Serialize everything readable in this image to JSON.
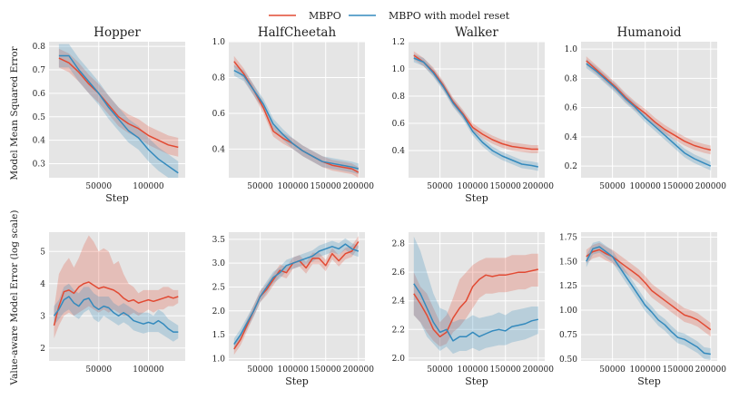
{
  "legend": {
    "items": [
      {
        "label": "MBPO",
        "color": "#E24A33"
      },
      {
        "label": "MBPO with model reset",
        "color": "#348ABD"
      }
    ]
  },
  "colors": {
    "panel_background": "#E5E5E5",
    "grid": "#FFFFFF",
    "mbpo": "#E24A33",
    "reset": "#348ABD"
  },
  "row_labels": [
    "Model Mean Squared Error",
    "Value-aware Model Error (log scale)"
  ],
  "chart_data": [
    {
      "type": "line",
      "title": "Hopper",
      "xlabel": "Step",
      "ylabel": "Model Mean Squared Error",
      "xlim": [
        0,
        137000
      ],
      "ylim": [
        0.24,
        0.82
      ],
      "xticks": [
        50000,
        100000
      ],
      "yticks": [
        0.3,
        0.4,
        0.5,
        0.6,
        0.7,
        0.8
      ],
      "yticklabels": [
        "0.3",
        "0.4",
        "0.5",
        "0.6",
        "0.7",
        "0.8"
      ],
      "grid": true,
      "x": [
        10000,
        20000,
        30000,
        40000,
        50000,
        60000,
        70000,
        80000,
        90000,
        100000,
        110000,
        120000,
        130000
      ],
      "series": [
        {
          "name": "MBPO",
          "color": "#E24A33",
          "values": [
            0.75,
            0.73,
            0.69,
            0.64,
            0.6,
            0.55,
            0.5,
            0.47,
            0.45,
            0.42,
            0.4,
            0.38,
            0.37
          ],
          "band": 0.04
        },
        {
          "name": "MBPO with model reset",
          "color": "#348ABD",
          "values": [
            0.76,
            0.76,
            0.7,
            0.65,
            0.6,
            0.54,
            0.49,
            0.44,
            0.41,
            0.36,
            0.32,
            0.29,
            0.26
          ],
          "band": 0.05
        }
      ]
    },
    {
      "type": "line",
      "title": "HalfCheetah",
      "xlabel": "",
      "ylabel": "",
      "xlim": [
        2000,
        210000
      ],
      "ylim": [
        0.24,
        1.0
      ],
      "xticks": [
        50000,
        100000,
        150000,
        200000
      ],
      "yticks": [
        0.4,
        0.6,
        0.8,
        1.0
      ],
      "yticklabels": [
        "0.4",
        "0.6",
        "0.8",
        "1.0"
      ],
      "grid": true,
      "x": [
        10000,
        25000,
        40000,
        55000,
        70000,
        85000,
        100000,
        115000,
        130000,
        145000,
        160000,
        175000,
        190000,
        200000
      ],
      "series": [
        {
          "name": "MBPO",
          "color": "#E24A33",
          "values": [
            0.89,
            0.82,
            0.73,
            0.63,
            0.5,
            0.46,
            0.43,
            0.39,
            0.36,
            0.33,
            0.31,
            0.3,
            0.29,
            0.27
          ],
          "band": 0.03
        },
        {
          "name": "MBPO with model reset",
          "color": "#348ABD",
          "values": [
            0.84,
            0.81,
            0.73,
            0.65,
            0.54,
            0.48,
            0.43,
            0.39,
            0.36,
            0.33,
            0.32,
            0.31,
            0.3,
            0.29
          ],
          "band": 0.03
        }
      ]
    },
    {
      "type": "line",
      "title": "Walker",
      "xlabel": "Step",
      "ylabel": "",
      "xlim": [
        2000,
        210000
      ],
      "ylim": [
        0.2,
        1.2
      ],
      "xticks": [
        50000,
        100000,
        150000,
        200000
      ],
      "yticks": [
        0.4,
        0.6,
        0.8,
        1.0,
        1.2
      ],
      "yticklabels": [
        "0.4",
        "0.6",
        "0.8",
        "1.0",
        "1.2"
      ],
      "grid": true,
      "x": [
        10000,
        25000,
        40000,
        55000,
        70000,
        85000,
        100000,
        115000,
        130000,
        145000,
        160000,
        175000,
        190000,
        200000
      ],
      "series": [
        {
          "name": "MBPO",
          "color": "#E24A33",
          "values": [
            1.1,
            1.05,
            0.98,
            0.88,
            0.76,
            0.67,
            0.57,
            0.52,
            0.48,
            0.45,
            0.43,
            0.42,
            0.41,
            0.41
          ],
          "band": 0.03
        },
        {
          "name": "MBPO with model reset",
          "color": "#348ABD",
          "values": [
            1.08,
            1.05,
            0.97,
            0.87,
            0.75,
            0.66,
            0.54,
            0.46,
            0.4,
            0.36,
            0.33,
            0.3,
            0.29,
            0.28
          ],
          "band": 0.03
        }
      ]
    },
    {
      "type": "line",
      "title": "Humanoid",
      "xlabel": "",
      "ylabel": "",
      "xlim": [
        2000,
        210000
      ],
      "ylim": [
        0.12,
        1.05
      ],
      "xticks": [
        50000,
        100000,
        150000,
        200000
      ],
      "yticks": [
        0.2,
        0.4,
        0.6,
        0.8,
        1.0
      ],
      "yticklabels": [
        "0.2",
        "0.4",
        "0.6",
        "0.8",
        "1.0"
      ],
      "grid": true,
      "x": [
        10000,
        25000,
        40000,
        55000,
        70000,
        85000,
        100000,
        115000,
        130000,
        145000,
        160000,
        175000,
        190000,
        200000
      ],
      "series": [
        {
          "name": "MBPO",
          "color": "#E24A33",
          "values": [
            0.92,
            0.86,
            0.8,
            0.74,
            0.67,
            0.61,
            0.56,
            0.5,
            0.45,
            0.41,
            0.37,
            0.34,
            0.32,
            0.31
          ],
          "band": 0.03
        },
        {
          "name": "MBPO with model reset",
          "color": "#348ABD",
          "values": [
            0.9,
            0.85,
            0.79,
            0.73,
            0.66,
            0.6,
            0.53,
            0.47,
            0.41,
            0.35,
            0.29,
            0.25,
            0.22,
            0.2
          ],
          "band": 0.03
        }
      ]
    },
    {
      "type": "line",
      "title": "",
      "xlabel": "",
      "ylabel": "Value-aware Model Error (log scale)",
      "xlim": [
        0,
        137000
      ],
      "ylim": [
        1.6,
        5.6
      ],
      "xticks": [
        50000,
        100000
      ],
      "yticks": [
        2,
        3,
        4,
        5
      ],
      "yticklabels": [
        "2",
        "3",
        "4",
        "5"
      ],
      "grid": true,
      "x": [
        5000,
        10000,
        15000,
        20000,
        25000,
        30000,
        35000,
        40000,
        45000,
        50000,
        55000,
        60000,
        65000,
        70000,
        75000,
        80000,
        85000,
        90000,
        95000,
        100000,
        105000,
        110000,
        115000,
        120000,
        125000,
        130000
      ],
      "series": [
        {
          "name": "MBPO",
          "color": "#E24A33",
          "values": [
            2.7,
            3.3,
            3.75,
            3.8,
            3.7,
            3.9,
            4.0,
            4.05,
            3.95,
            3.85,
            3.9,
            3.85,
            3.8,
            3.7,
            3.55,
            3.45,
            3.5,
            3.4,
            3.45,
            3.5,
            3.45,
            3.5,
            3.55,
            3.6,
            3.55,
            3.6
          ],
          "upper": [
            3.2,
            4.3,
            4.6,
            4.8,
            4.5,
            4.8,
            5.2,
            5.5,
            5.3,
            5.0,
            5.1,
            5.0,
            4.6,
            4.7,
            4.3,
            4.0,
            3.9,
            3.7,
            3.8,
            3.8,
            3.8,
            3.8,
            3.9,
            3.9,
            3.8,
            3.8
          ],
          "lower": [
            2.3,
            2.7,
            3.0,
            3.1,
            3.0,
            3.1,
            3.2,
            3.3,
            3.2,
            3.1,
            3.2,
            3.1,
            3.2,
            3.1,
            3.0,
            3.0,
            3.1,
            3.0,
            3.1,
            3.2,
            3.1,
            3.2,
            3.2,
            3.3,
            3.3,
            3.4
          ]
        },
        {
          "name": "MBPO with model reset",
          "color": "#348ABD",
          "values": [
            3.0,
            3.2,
            3.5,
            3.6,
            3.4,
            3.3,
            3.5,
            3.55,
            3.3,
            3.2,
            3.3,
            3.25,
            3.1,
            3.0,
            3.1,
            3.0,
            2.85,
            2.8,
            2.75,
            2.8,
            2.75,
            2.85,
            2.75,
            2.6,
            2.5,
            2.5
          ],
          "upper": [
            3.3,
            3.5,
            3.9,
            4.0,
            3.8,
            3.7,
            3.9,
            3.9,
            3.7,
            3.6,
            3.6,
            3.6,
            3.4,
            3.3,
            3.4,
            3.3,
            3.2,
            3.1,
            3.1,
            3.1,
            3.0,
            3.2,
            3.1,
            2.9,
            2.8,
            2.7
          ],
          "lower": [
            2.7,
            2.9,
            3.1,
            3.2,
            3.0,
            2.9,
            3.1,
            3.2,
            2.9,
            2.8,
            3.0,
            2.9,
            2.8,
            2.7,
            2.8,
            2.7,
            2.55,
            2.5,
            2.45,
            2.5,
            2.5,
            2.5,
            2.4,
            2.3,
            2.2,
            2.3
          ]
        }
      ]
    },
    {
      "type": "line",
      "title": "",
      "xlabel": "Step",
      "ylabel": "",
      "xlim": [
        2000,
        210000
      ],
      "ylim": [
        0.95,
        3.65
      ],
      "xticks": [
        50000,
        100000,
        150000,
        200000
      ],
      "yticks": [
        1.0,
        1.5,
        2.0,
        2.5,
        3.0,
        3.5
      ],
      "yticklabels": [
        "1.0",
        "1.5",
        "2.0",
        "2.5",
        "3.0",
        "3.5"
      ],
      "grid": true,
      "x": [
        10000,
        20000,
        30000,
        40000,
        50000,
        60000,
        70000,
        80000,
        90000,
        100000,
        110000,
        120000,
        130000,
        140000,
        150000,
        160000,
        170000,
        180000,
        190000,
        200000
      ],
      "series": [
        {
          "name": "MBPO",
          "color": "#E24A33",
          "values": [
            1.2,
            1.4,
            1.7,
            2.0,
            2.3,
            2.45,
            2.65,
            2.85,
            2.8,
            3.0,
            3.05,
            2.9,
            3.1,
            3.1,
            2.95,
            3.2,
            3.05,
            3.2,
            3.25,
            3.45
          ],
          "band": 0.12
        },
        {
          "name": "MBPO with model reset",
          "color": "#348ABD",
          "values": [
            1.3,
            1.5,
            1.75,
            2.0,
            2.3,
            2.5,
            2.7,
            2.8,
            2.95,
            3.0,
            3.05,
            3.1,
            3.15,
            3.25,
            3.3,
            3.35,
            3.3,
            3.4,
            3.3,
            3.25
          ],
          "band": 0.12
        }
      ]
    },
    {
      "type": "line",
      "title": "",
      "xlabel": "Step",
      "ylabel": "",
      "xlim": [
        2000,
        210000
      ],
      "ylim": [
        1.98,
        2.88
      ],
      "xticks": [
        50000,
        100000,
        150000,
        200000
      ],
      "yticks": [
        2.0,
        2.2,
        2.4,
        2.6,
        2.8
      ],
      "yticklabels": [
        "2.0",
        "2.2",
        "2.4",
        "2.6",
        "2.8"
      ],
      "grid": true,
      "x": [
        10000,
        20000,
        30000,
        40000,
        50000,
        60000,
        70000,
        80000,
        90000,
        100000,
        110000,
        120000,
        130000,
        140000,
        150000,
        160000,
        170000,
        180000,
        190000,
        200000
      ],
      "series": [
        {
          "name": "MBPO",
          "color": "#E24A33",
          "values": [
            2.45,
            2.38,
            2.3,
            2.2,
            2.15,
            2.18,
            2.28,
            2.35,
            2.4,
            2.5,
            2.55,
            2.58,
            2.57,
            2.58,
            2.58,
            2.59,
            2.6,
            2.6,
            2.61,
            2.62
          ],
          "upper": [
            2.6,
            2.5,
            2.45,
            2.35,
            2.25,
            2.3,
            2.42,
            2.55,
            2.6,
            2.65,
            2.68,
            2.7,
            2.7,
            2.7,
            2.7,
            2.72,
            2.72,
            2.72,
            2.73,
            2.73
          ],
          "lower": [
            2.3,
            2.25,
            2.18,
            2.12,
            2.08,
            2.1,
            2.18,
            2.22,
            2.28,
            2.35,
            2.42,
            2.45,
            2.45,
            2.46,
            2.46,
            2.47,
            2.48,
            2.48,
            2.5,
            2.5
          ]
        },
        {
          "name": "MBPO with model reset",
          "color": "#348ABD",
          "values": [
            2.52,
            2.45,
            2.35,
            2.25,
            2.18,
            2.2,
            2.12,
            2.15,
            2.15,
            2.18,
            2.15,
            2.17,
            2.19,
            2.2,
            2.19,
            2.22,
            2.23,
            2.24,
            2.26,
            2.27
          ],
          "upper": [
            2.85,
            2.75,
            2.6,
            2.45,
            2.35,
            2.33,
            2.25,
            2.27,
            2.27,
            2.3,
            2.28,
            2.29,
            2.3,
            2.32,
            2.3,
            2.33,
            2.34,
            2.35,
            2.36,
            2.36
          ],
          "lower": [
            2.3,
            2.25,
            2.15,
            2.1,
            2.05,
            2.08,
            2.03,
            2.05,
            2.05,
            2.07,
            2.05,
            2.07,
            2.08,
            2.09,
            2.09,
            2.11,
            2.12,
            2.13,
            2.15,
            2.17
          ]
        }
      ]
    },
    {
      "type": "line",
      "title": "",
      "xlabel": "Step",
      "ylabel": "",
      "xlim": [
        2000,
        210000
      ],
      "ylim": [
        0.48,
        1.8
      ],
      "xticks": [
        50000,
        100000,
        150000,
        200000
      ],
      "yticks": [
        0.5,
        0.75,
        1.0,
        1.25,
        1.5,
        1.75
      ],
      "yticklabels": [
        "0.50",
        "0.75",
        "1.00",
        "1.25",
        "1.50",
        "1.75"
      ],
      "grid": true,
      "x": [
        10000,
        20000,
        30000,
        40000,
        50000,
        60000,
        70000,
        80000,
        90000,
        100000,
        110000,
        120000,
        130000,
        140000,
        150000,
        160000,
        170000,
        180000,
        190000,
        200000
      ],
      "series": [
        {
          "name": "MBPO",
          "color": "#E24A33",
          "values": [
            1.55,
            1.6,
            1.62,
            1.58,
            1.55,
            1.5,
            1.45,
            1.4,
            1.35,
            1.28,
            1.2,
            1.15,
            1.1,
            1.05,
            1.0,
            0.95,
            0.93,
            0.9,
            0.85,
            0.8
          ],
          "band": 0.07
        },
        {
          "name": "MBPO with model reset",
          "color": "#348ABD",
          "values": [
            1.5,
            1.63,
            1.65,
            1.6,
            1.55,
            1.45,
            1.35,
            1.25,
            1.15,
            1.05,
            0.98,
            0.9,
            0.85,
            0.78,
            0.72,
            0.7,
            0.66,
            0.62,
            0.56,
            0.55
          ],
          "band": 0.06
        }
      ]
    }
  ]
}
